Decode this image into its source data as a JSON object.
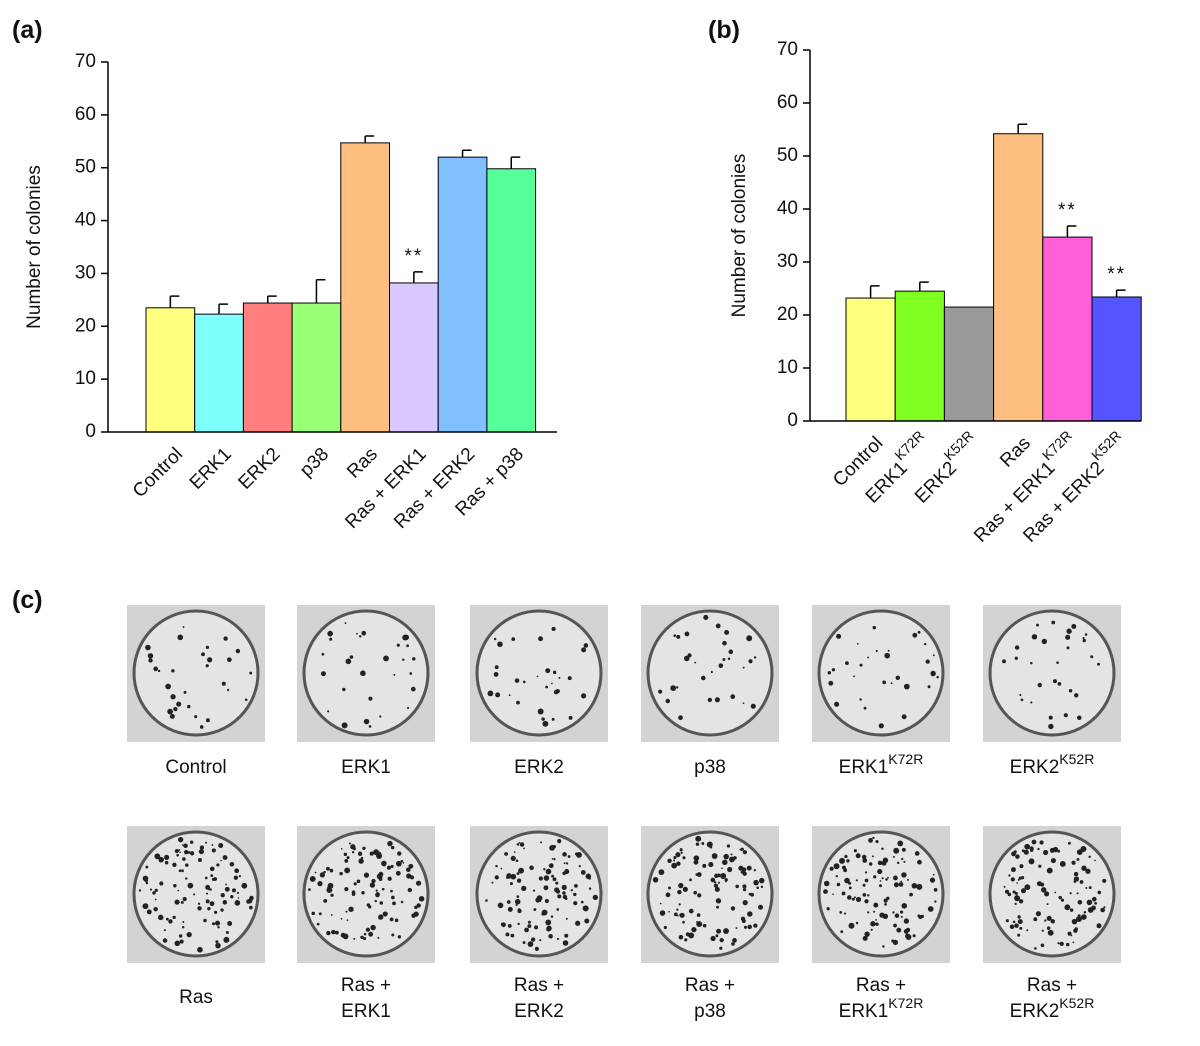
{
  "chart_data": [
    {
      "type": "bar",
      "panel_label": "(a)",
      "y_label": "Number of colonies",
      "categories": [
        "Control",
        "ERK1",
        "ERK2",
        "p38",
        "Ras",
        "Ras + ERK1",
        "Ras + ERK2",
        "Ras + p38"
      ],
      "values": [
        23.5,
        22.3,
        24.4,
        24.4,
        54.7,
        28.2,
        52.0,
        49.8
      ],
      "errors": [
        2.2,
        1.9,
        1.3,
        4.4,
        1.3,
        2.1,
        1.3,
        2.2
      ],
      "annotations": [
        null,
        null,
        null,
        null,
        null,
        "**",
        null,
        null
      ],
      "colors": [
        "#ffff80",
        "#80ffff",
        "#ff7f7f",
        "#99ff77",
        "#ffbf80",
        "#d8c8ff",
        "#80c0ff",
        "#55ff99"
      ],
      "ylim": [
        0,
        70
      ],
      "yticks": [
        0,
        10,
        20,
        30,
        40,
        50,
        60,
        70
      ]
    },
    {
      "type": "bar",
      "panel_label": "(b)",
      "y_label": "Number of colonies",
      "categories": [
        "Control",
        {
          "text": "ERK1",
          "superscript": "K72R"
        },
        {
          "text": "ERK2",
          "superscript": "K52R"
        },
        "Ras",
        {
          "text": "Ras + ERK1",
          "superscript": "K72R"
        },
        {
          "text": "Ras + ERK2",
          "superscript": "K52R"
        }
      ],
      "values": [
        23.2,
        24.5,
        21.5,
        54.2,
        34.7,
        23.4
      ],
      "errors": [
        2.3,
        1.7,
        null,
        1.8,
        2.1,
        1.3
      ],
      "annotations": [
        null,
        null,
        null,
        null,
        "**",
        "**"
      ],
      "colors": [
        "#ffff80",
        "#80ff20",
        "#999999",
        "#ffbf80",
        "#ff60d8",
        "#5555ff"
      ],
      "ylim": [
        0,
        70
      ],
      "yticks": [
        0,
        10,
        20,
        30,
        40,
        50,
        60,
        70
      ]
    }
  ],
  "photo_panel": {
    "panel_label": "(c)",
    "rows": [
      [
        [
          {
            "text": "Control"
          }
        ],
        [
          {
            "text": "ERK1"
          }
        ],
        [
          {
            "text": "ERK2"
          }
        ],
        [
          {
            "text": "p38"
          }
        ],
        [
          {
            "text": "ERK1",
            "superscript": "K72R"
          }
        ],
        [
          {
            "text": "ERK2",
            "superscript": "K52R"
          }
        ]
      ],
      [
        [
          {
            "text": "Ras"
          }
        ],
        [
          {
            "text": "Ras +"
          },
          {
            "text": "ERK1"
          }
        ],
        [
          {
            "text": "Ras +"
          },
          {
            "text": "ERK2"
          }
        ],
        [
          {
            "text": "Ras +"
          },
          {
            "text": "p38"
          }
        ],
        [
          {
            "text": "Ras +"
          },
          {
            "text": "ERK1",
            "superscript": "K72R"
          }
        ],
        [
          {
            "text": "Ras +"
          },
          {
            "text": "ERK2",
            "superscript": "K52R"
          }
        ]
      ]
    ]
  }
}
